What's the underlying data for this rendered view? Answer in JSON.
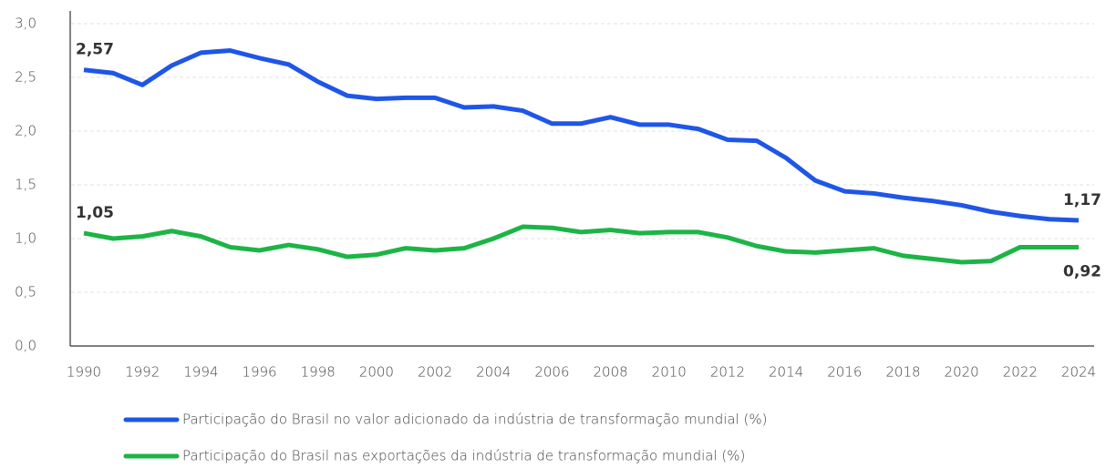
{
  "chart_data": {
    "type": "line",
    "x": [
      1990,
      1991,
      1992,
      1993,
      1994,
      1995,
      1996,
      1997,
      1998,
      1999,
      2000,
      2001,
      2002,
      2003,
      2004,
      2005,
      2006,
      2007,
      2008,
      2009,
      2010,
      2011,
      2012,
      2013,
      2014,
      2015,
      2016,
      2017,
      2018,
      2019,
      2020,
      2021,
      2022,
      2023,
      2024
    ],
    "series": [
      {
        "name": "Participação do Brasil no valor adicionado da indústria de transformação mundial (%)",
        "color": "#1f56e8",
        "values": [
          2.57,
          2.54,
          2.43,
          2.61,
          2.73,
          2.75,
          2.68,
          2.62,
          2.46,
          2.33,
          2.3,
          2.31,
          2.31,
          2.22,
          2.23,
          2.19,
          2.07,
          2.07,
          2.13,
          2.06,
          2.06,
          2.02,
          1.92,
          1.91,
          1.75,
          1.54,
          1.44,
          1.42,
          1.38,
          1.35,
          1.31,
          1.25,
          1.21,
          1.18,
          1.17
        ],
        "value_labels": [
          "2,57",
          null,
          null,
          null,
          null,
          null,
          null,
          null,
          null,
          null,
          null,
          null,
          null,
          null,
          null,
          null,
          null,
          null,
          null,
          null,
          null,
          null,
          null,
          null,
          null,
          null,
          null,
          null,
          null,
          null,
          null,
          null,
          null,
          null,
          "1,17"
        ]
      },
      {
        "name": "Participação do Brasil nas exportações da indústria de transformação mundial (%)",
        "color": "#1db446",
        "values": [
          1.05,
          1.0,
          1.02,
          1.07,
          1.02,
          0.92,
          0.89,
          0.94,
          0.9,
          0.83,
          0.85,
          0.91,
          0.89,
          0.91,
          1.0,
          1.11,
          1.1,
          1.06,
          1.08,
          1.05,
          1.06,
          1.06,
          1.01,
          0.93,
          0.88,
          0.87,
          0.89,
          0.91,
          0.84,
          0.81,
          0.78,
          0.79,
          0.92,
          0.92,
          0.92
        ],
        "value_labels": [
          "1,05",
          null,
          null,
          null,
          null,
          null,
          null,
          null,
          null,
          null,
          null,
          null,
          null,
          null,
          null,
          null,
          null,
          null,
          null,
          null,
          null,
          null,
          null,
          null,
          null,
          null,
          null,
          null,
          null,
          null,
          null,
          null,
          null,
          null,
          "0,92"
        ]
      }
    ],
    "xlim": [
      1990,
      2024
    ],
    "xticks": [
      1990,
      1992,
      1994,
      1996,
      1998,
      2000,
      2002,
      2004,
      2006,
      2008,
      2010,
      2012,
      2014,
      2016,
      2018,
      2020,
      2022,
      2024
    ],
    "ylim": [
      0,
      3
    ],
    "yticks": [
      {
        "value": 0,
        "label": "0,0"
      },
      {
        "value": 0.5,
        "label": "0,5"
      },
      {
        "value": 1,
        "label": "1,0"
      },
      {
        "value": 1.5,
        "label": "1,5"
      },
      {
        "value": 2,
        "label": "2,0"
      },
      {
        "value": 2.5,
        "label": "2,5"
      },
      {
        "value": 3,
        "label": "3,0"
      }
    ],
    "grid": true
  }
}
